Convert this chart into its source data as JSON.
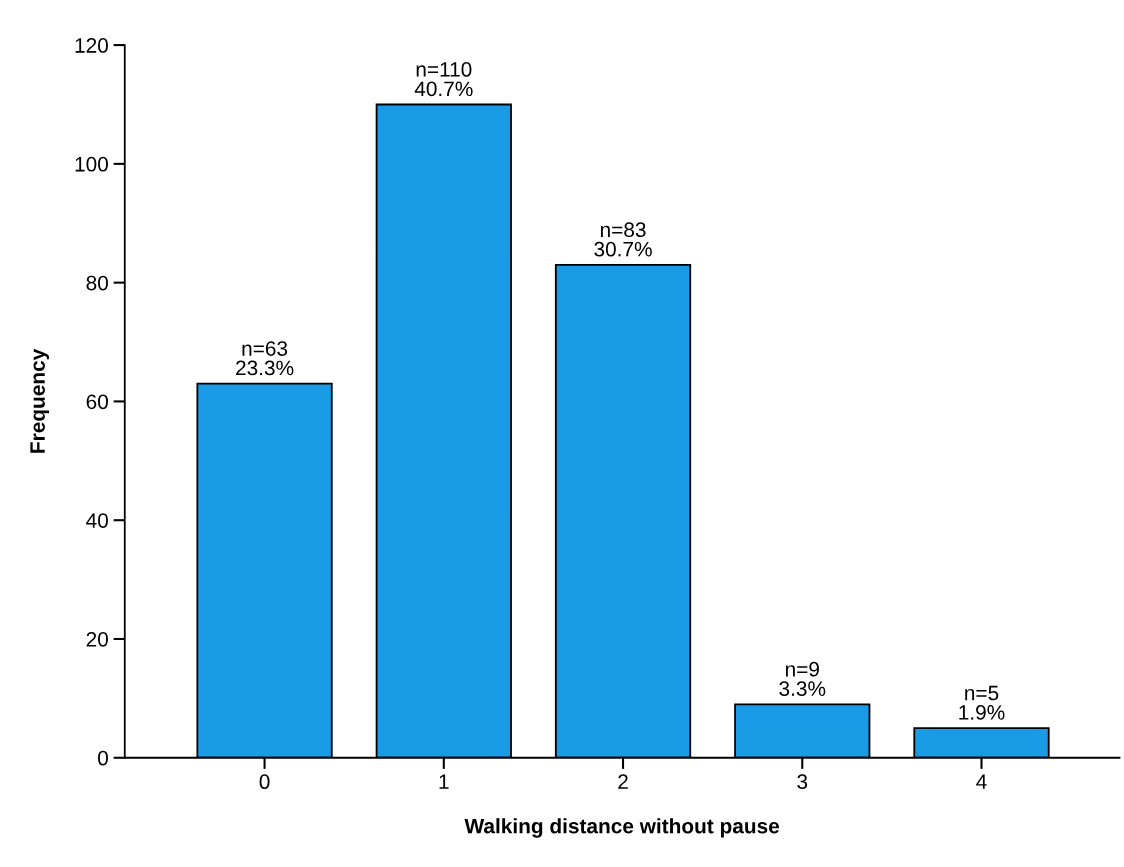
{
  "chart_data": {
    "type": "bar",
    "xlabel": "Walking distance without pause",
    "ylabel": "Frequency",
    "categories": [
      "0",
      "1",
      "2",
      "3",
      "4"
    ],
    "values": [
      63,
      110,
      83,
      9,
      5
    ],
    "value_labels": [
      "n=63\n23.3%",
      "n=110\n40.7%",
      "n=83\n30.7%",
      "n=9\n3.3%",
      "n=5\n1.9%"
    ],
    "color": "#1a9be6",
    "ylim": [
      0,
      120
    ],
    "yticks": [
      0,
      20,
      40,
      60,
      80,
      100,
      120
    ],
    "grid": false
  }
}
